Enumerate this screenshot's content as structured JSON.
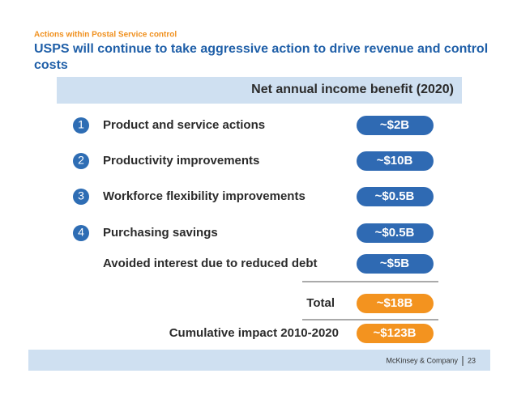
{
  "header": {
    "kicker": "Actions within Postal Service control",
    "title_lines": [
      "USPS will continue to take aggressive action to drive revenue and control",
      "costs"
    ]
  },
  "table": {
    "column_header": "Net annual income benefit (2020)",
    "rows": [
      {
        "number": "1",
        "label": "Product and service actions",
        "value": "~$2B"
      },
      {
        "number": "2",
        "label": "Productivity improvements",
        "value": "~$10B"
      },
      {
        "number": "3",
        "label": "Workforce flexibility improvements",
        "value": "~$0.5B"
      },
      {
        "number": "4",
        "label": "Purchasing savings",
        "value": "~$0.5B"
      },
      {
        "label": "Avoided interest due to reduced debt",
        "value": "~$5B"
      }
    ],
    "total": {
      "label": "Total",
      "value": "~$18B"
    },
    "cumulative": {
      "label": "Cumulative impact 2010-2020",
      "value": "~$123B"
    }
  },
  "footer": {
    "company": "McKinsey & Company",
    "page": "23"
  }
}
